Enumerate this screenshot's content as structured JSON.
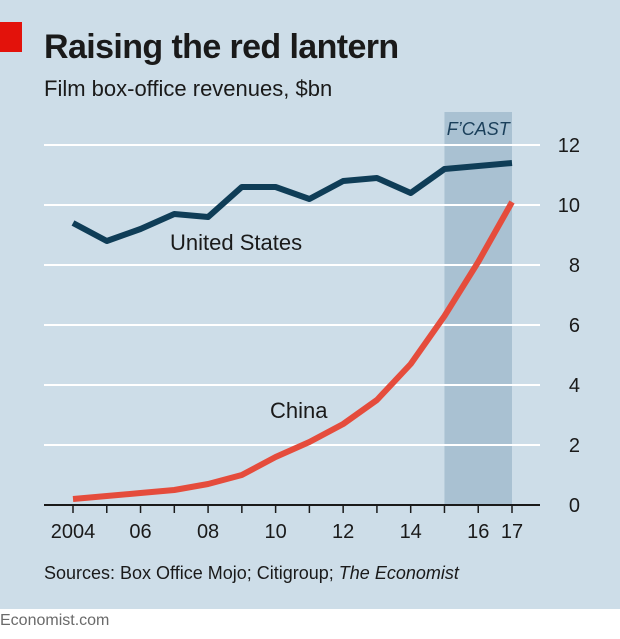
{
  "chart_data": {
    "type": "line",
    "title": "Raising the red lantern",
    "subtitle": "Film box-office revenues, $bn",
    "x": [
      2004,
      2005,
      2006,
      2007,
      2008,
      2009,
      2010,
      2011,
      2012,
      2013,
      2014,
      2015,
      2016,
      2017
    ],
    "x_tick_labels": [
      {
        "x": 2004,
        "label": "2004"
      },
      {
        "x": 2006,
        "label": "06"
      },
      {
        "x": 2008,
        "label": "08"
      },
      {
        "x": 2010,
        "label": "10"
      },
      {
        "x": 2012,
        "label": "12"
      },
      {
        "x": 2014,
        "label": "14"
      },
      {
        "x": 2016,
        "label": "16"
      },
      {
        "x": 2017,
        "label": "17"
      }
    ],
    "y_ticks": [
      0,
      2,
      4,
      6,
      8,
      10,
      12
    ],
    "ylim": [
      0,
      12.5
    ],
    "xlim": [
      2004,
      2017
    ],
    "grid": true,
    "forecast_band": {
      "from": 2015,
      "to": 2017,
      "label": "F’CAST"
    },
    "series": [
      {
        "name": "United States",
        "color": "#0f3d57",
        "values": [
          9.4,
          8.8,
          9.2,
          9.7,
          9.6,
          10.6,
          10.6,
          10.2,
          10.8,
          10.9,
          10.4,
          11.2,
          11.3,
          11.4
        ]
      },
      {
        "name": "China",
        "color": "#e54c3c",
        "values": [
          0.2,
          0.3,
          0.4,
          0.5,
          0.7,
          1.0,
          1.6,
          2.1,
          2.7,
          3.5,
          4.7,
          6.3,
          8.1,
          10.1
        ]
      }
    ]
  },
  "source_prefix": "Sources: Box Office Mojo; Citigroup; ",
  "source_italic": "The Economist",
  "footer": "Economist.com",
  "colors": {
    "background": "#cddde8",
    "accent": "#e3120b",
    "forecast_band": "#a9c1d2",
    "gridline": "#ffffff"
  }
}
